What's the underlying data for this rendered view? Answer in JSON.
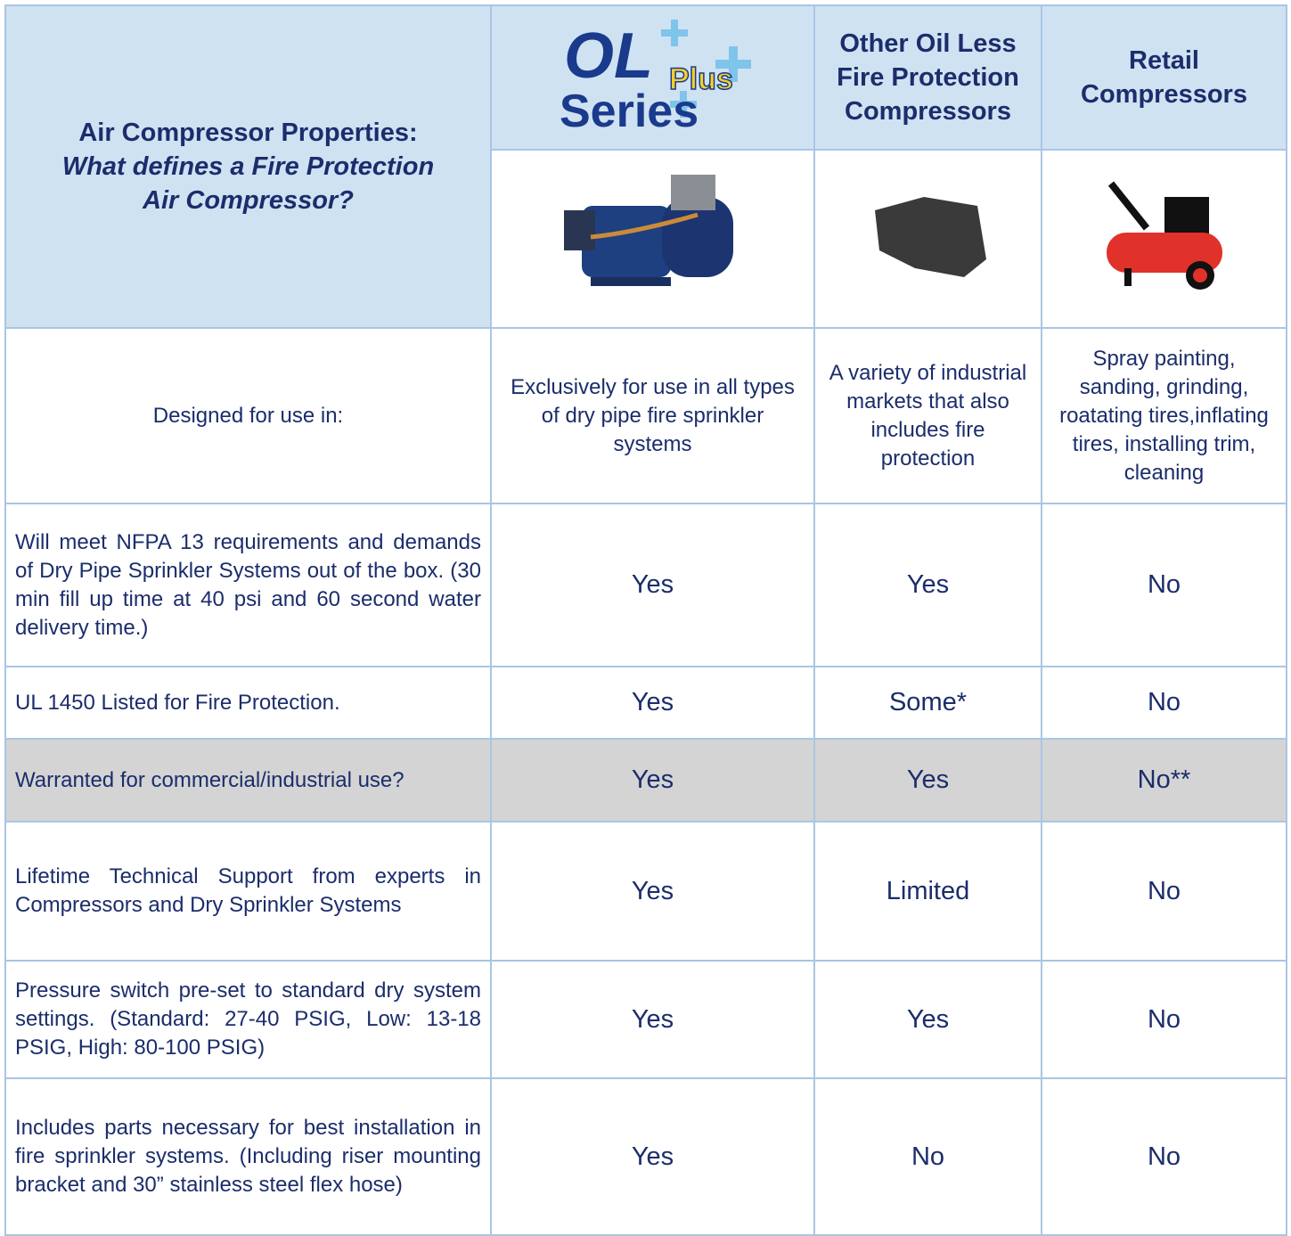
{
  "header": {
    "title": "Air Compressor Properties:",
    "subtitle": "What defines a Fire Protection Air Compressor?",
    "logo": {
      "main": "OL",
      "badge": "Plus",
      "series": "Series"
    },
    "columns": [
      "Other Oil Less Fire Protection Compressors",
      "Retail Compressors"
    ]
  },
  "table": {
    "rows": [
      [
        "Designed for use in:",
        "Exclusively for use in all types of dry pipe fire sprinkler systems",
        "A variety of industrial markets that also includes fire protection",
        "Spray painting, sanding, grinding, roatating tires,inflating tires, installing trim, cleaning"
      ],
      [
        "Will meet NFPA 13 requirements and demands of Dry Pipe Sprinkler Systems out of the box. (30 min fill up time at 40 psi and 60 second water delivery time.)",
        "Yes",
        "Yes",
        "No"
      ],
      [
        "UL 1450 Listed for Fire Protection.",
        "Yes",
        "Some*",
        "No"
      ],
      [
        "Warranted for commercial/industrial use?",
        "Yes",
        "Yes",
        "No**"
      ],
      [
        "Lifetime Technical Support from experts in Compressors and Dry Sprinkler Systems",
        "Yes",
        "Limited",
        "No"
      ],
      [
        "Pressure switch pre-set to standard dry system settings. (Standard: 27-40 PSIG, Low: 13-18 PSIG, High: 80-100 PSIG)",
        "Yes",
        "Yes",
        "No"
      ],
      [
        "Includes parts necessary for best installation in fire sprinkler systems. (Including riser mounting bracket and 30” stainless steel flex hose)",
        "Yes",
        "No",
        "No"
      ]
    ]
  }
}
